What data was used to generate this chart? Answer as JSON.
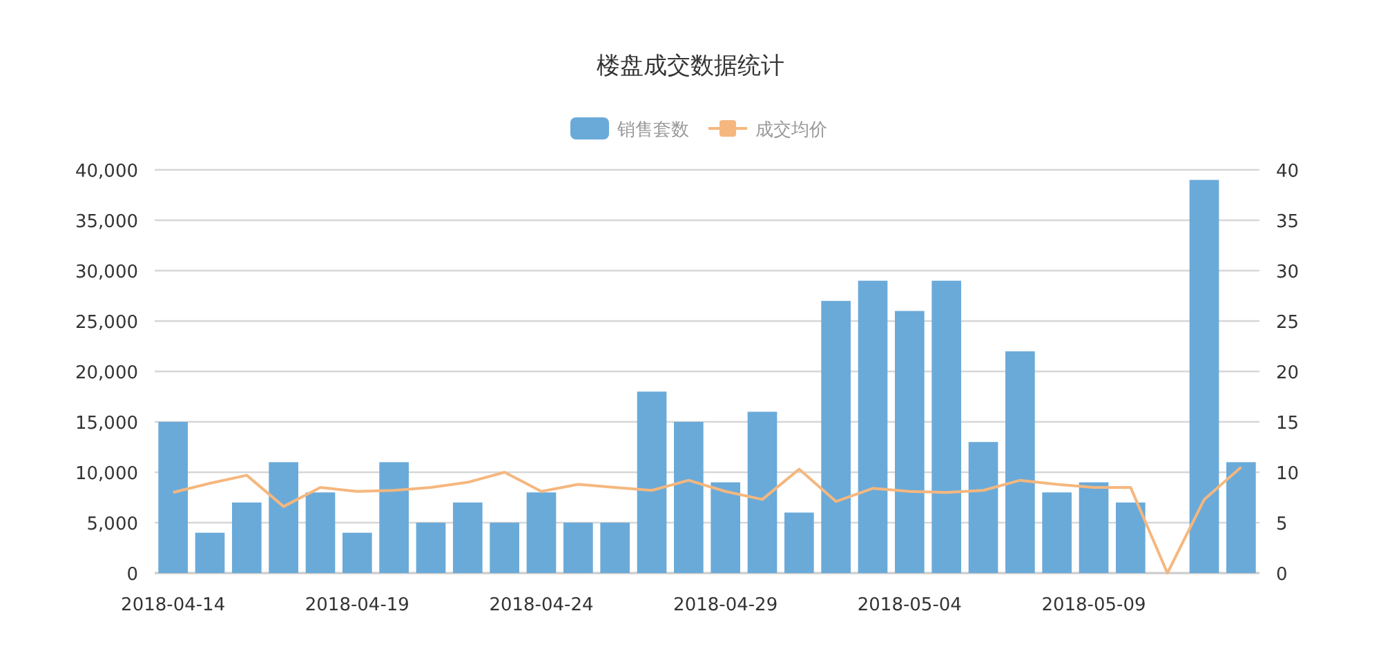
{
  "chart_data": {
    "type": "bar",
    "title": "楼盘成交数据统计",
    "categories": [
      "2018-04-14",
      null,
      null,
      null,
      null,
      "2018-04-19",
      null,
      null,
      null,
      null,
      "2018-04-24",
      null,
      null,
      null,
      null,
      "2018-04-29",
      null,
      null,
      null,
      null,
      "2018-05-04",
      null,
      null,
      null,
      null,
      "2018-05-09",
      null,
      null,
      null,
      null
    ],
    "series": [
      {
        "name": "销售套数",
        "color": "#6aaad9",
        "values": [
          15000,
          4000,
          7000,
          11000,
          8000,
          4000,
          11000,
          5000,
          7000,
          5000,
          8000,
          5000,
          5000,
          18000,
          15000,
          9000,
          16000,
          6000,
          27000,
          29000,
          26000,
          29000,
          13000,
          22000,
          8000,
          9000,
          7000,
          0,
          39000,
          11000
        ]
      },
      {
        "name": "成交均价",
        "type": "line",
        "axis": "y2",
        "color": "#f5b77e",
        "values": [
          8,
          8.9,
          9.7,
          6.6,
          8.5,
          8.1,
          8.2,
          8.5,
          9,
          10,
          8.1,
          8.8,
          8.5,
          8.2,
          9.2,
          8.1,
          7.3,
          10.3,
          7.1,
          8.4,
          8.1,
          8,
          8.2,
          9.2,
          8.8,
          8.5,
          8.5,
          0,
          7.3,
          10.5
        ]
      }
    ],
    "ylim": [
      0,
      40000
    ],
    "yticks": [
      {
        "value": 0,
        "label": "0"
      },
      {
        "value": 5000,
        "label": "5,000"
      },
      {
        "value": 10000,
        "label": "10,000"
      },
      {
        "value": 15000,
        "label": "15,000"
      },
      {
        "value": 20000,
        "label": "20,000"
      },
      {
        "value": 25000,
        "label": "25,000"
      },
      {
        "value": 30000,
        "label": "30,000"
      },
      {
        "value": 35000,
        "label": "35,000"
      },
      {
        "value": 40000,
        "label": "40,000"
      }
    ],
    "y2lim": [
      0,
      40
    ],
    "y2ticks": [
      0,
      5,
      10,
      15,
      20,
      25,
      30,
      35,
      40
    ],
    "grid": "y",
    "legend": "top"
  }
}
